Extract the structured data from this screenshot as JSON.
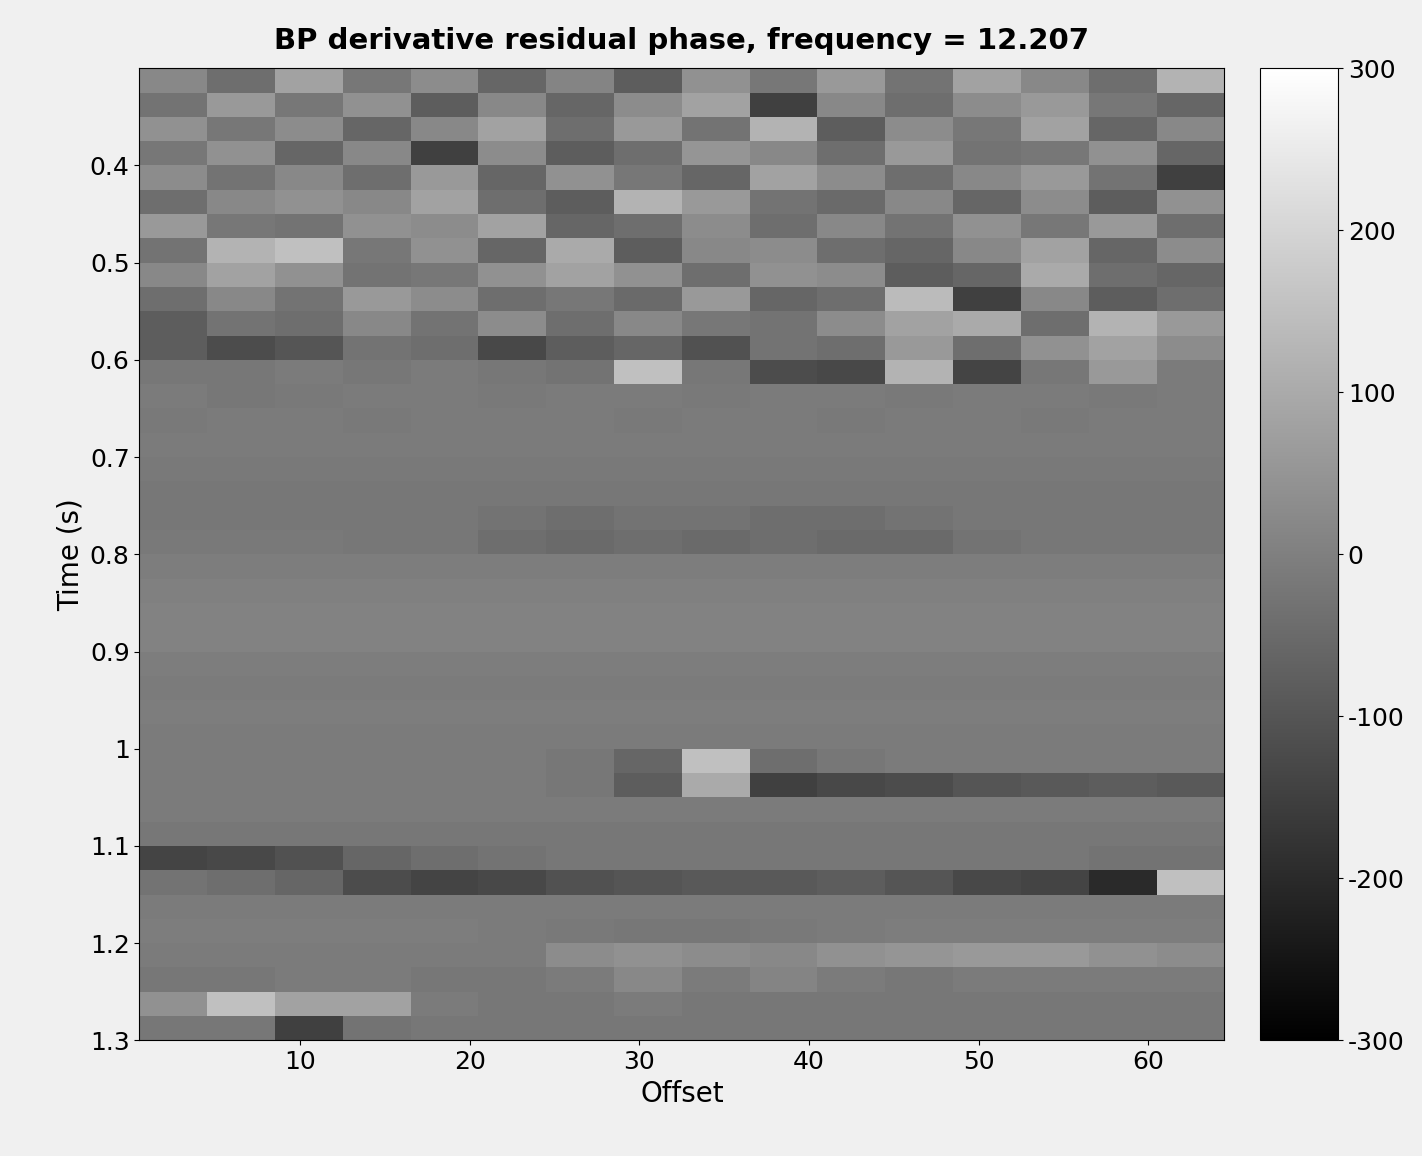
{
  "chart_data": {
    "type": "heatmap",
    "title": "BP derivative residual phase, frequency = 12.207",
    "x_label": "Offset",
    "y_label": "Time (s)",
    "color": "gray",
    "x": [
      2.5,
      6.5,
      10.5,
      14.5,
      18.5,
      22.5,
      26.5,
      30.5,
      34.5,
      38.5,
      42.5,
      46.5,
      50.5,
      54.5,
      58.5,
      62.5
    ],
    "y": [
      0.3125,
      0.3375,
      0.3625,
      0.3875,
      0.4125,
      0.4375,
      0.4625,
      0.4875,
      0.5125,
      0.5375,
      0.5625,
      0.5875,
      0.6125,
      0.6375,
      0.6625,
      0.6875,
      0.7125,
      0.7375,
      0.7625,
      0.7875,
      0.8125,
      0.8375,
      0.8625,
      0.8875,
      0.9125,
      0.9375,
      0.9625,
      0.9875,
      1.0125,
      1.0375,
      1.0625,
      1.0875,
      1.1125,
      1.1375,
      1.1625,
      1.1875,
      1.2125,
      1.2375,
      1.2625,
      1.2875
    ],
    "cells": [
      [
        20,
        -40,
        80,
        -20,
        30,
        -60,
        10,
        -80,
        40,
        -20,
        60,
        -30,
        80,
        20,
        -40,
        120
      ],
      [
        -30,
        60,
        -20,
        40,
        -80,
        20,
        -60,
        30,
        80,
        -150,
        20,
        -40,
        30,
        60,
        -20,
        -60
      ],
      [
        40,
        -20,
        30,
        -60,
        20,
        80,
        -40,
        60,
        -30,
        120,
        -80,
        30,
        -20,
        80,
        -60,
        20
      ],
      [
        -20,
        40,
        -60,
        20,
        -150,
        30,
        -80,
        -40,
        50,
        20,
        -40,
        60,
        -30,
        -20,
        40,
        -60
      ],
      [
        30,
        -30,
        20,
        -40,
        60,
        -60,
        40,
        -20,
        -60,
        80,
        30,
        -40,
        20,
        60,
        -30,
        -150
      ],
      [
        -40,
        20,
        40,
        20,
        80,
        -40,
        -80,
        120,
        60,
        -30,
        -50,
        20,
        -60,
        30,
        -80,
        40
      ],
      [
        60,
        -20,
        -30,
        40,
        30,
        80,
        -60,
        -40,
        30,
        -40,
        20,
        -30,
        40,
        -20,
        60,
        -40
      ],
      [
        -30,
        120,
        150,
        -20,
        40,
        -60,
        100,
        -80,
        20,
        30,
        -40,
        -60,
        20,
        80,
        -60,
        30
      ],
      [
        20,
        80,
        40,
        -30,
        -20,
        40,
        80,
        40,
        -40,
        40,
        30,
        -80,
        -60,
        100,
        -40,
        -60
      ],
      [
        -40,
        20,
        -30,
        60,
        30,
        -40,
        -20,
        -50,
        60,
        -60,
        -40,
        140,
        -150,
        20,
        -80,
        -40
      ],
      [
        -80,
        -30,
        -40,
        20,
        -30,
        30,
        -40,
        20,
        -20,
        -30,
        30,
        80,
        100,
        -40,
        120,
        60
      ],
      [
        -80,
        -120,
        -100,
        -30,
        -40,
        -130,
        -80,
        -60,
        -110,
        -30,
        -40,
        60,
        -40,
        40,
        80,
        30
      ],
      [
        -20,
        -20,
        -10,
        -20,
        -10,
        -20,
        -30,
        150,
        -20,
        -120,
        -130,
        120,
        -140,
        -20,
        60,
        -10
      ],
      [
        -10,
        -20,
        -15,
        -10,
        -10,
        -15,
        -10,
        -10,
        -15,
        -10,
        -10,
        -15,
        -10,
        -10,
        -15,
        -10
      ],
      [
        -15,
        -10,
        -10,
        -15,
        -10,
        -10,
        -10,
        -15,
        -10,
        -10,
        -15,
        -10,
        -10,
        -15,
        -10,
        -10
      ],
      [
        -10,
        -10,
        -10,
        -10,
        -10,
        -10,
        -10,
        -10,
        -10,
        -10,
        -10,
        -10,
        -10,
        -10,
        -10,
        -10
      ],
      [
        -15,
        -15,
        -15,
        -15,
        -15,
        -15,
        -15,
        -15,
        -15,
        -15,
        -15,
        -15,
        -15,
        -15,
        -15,
        -15
      ],
      [
        -20,
        -20,
        -20,
        -20,
        -20,
        -20,
        -20,
        -20,
        -20,
        -20,
        -20,
        -20,
        -20,
        -20,
        -20,
        -20
      ],
      [
        -20,
        -20,
        -20,
        -20,
        -20,
        -30,
        -40,
        -30,
        -30,
        -40,
        -40,
        -30,
        -20,
        -20,
        -20,
        -20
      ],
      [
        -15,
        -15,
        -15,
        -20,
        -20,
        -40,
        -50,
        -40,
        -50,
        -40,
        -50,
        -50,
        -30,
        -20,
        -20,
        -20
      ],
      [
        -5,
        -5,
        -5,
        -5,
        -5,
        -5,
        -5,
        -5,
        -5,
        -5,
        -5,
        -5,
        -5,
        -5,
        -5,
        -5
      ],
      [
        0,
        0,
        0,
        0,
        0,
        0,
        0,
        0,
        0,
        0,
        0,
        0,
        0,
        0,
        0,
        0
      ],
      [
        5,
        5,
        5,
        5,
        5,
        5,
        5,
        5,
        5,
        5,
        5,
        5,
        5,
        5,
        5,
        5
      ],
      [
        5,
        5,
        5,
        5,
        5,
        5,
        5,
        5,
        5,
        5,
        5,
        5,
        5,
        5,
        5,
        5
      ],
      [
        -5,
        -5,
        -5,
        -5,
        -5,
        -5,
        -5,
        -5,
        -5,
        -5,
        -5,
        -5,
        -5,
        -5,
        -5,
        -5
      ],
      [
        -10,
        -10,
        -10,
        -10,
        -10,
        -10,
        -10,
        -10,
        -10,
        -10,
        -10,
        -10,
        -10,
        -10,
        -10,
        -10
      ],
      [
        -5,
        -5,
        -5,
        -5,
        -5,
        -5,
        -5,
        -5,
        -5,
        -5,
        -5,
        -5,
        -5,
        -5,
        -5,
        -5
      ],
      [
        -10,
        -10,
        -10,
        -10,
        -10,
        -10,
        -10,
        -10,
        -10,
        -10,
        -10,
        -10,
        -10,
        -10,
        -10,
        -10
      ],
      [
        -10,
        -10,
        -10,
        -10,
        -10,
        -10,
        -20,
        -60,
        150,
        -40,
        -20,
        -10,
        -10,
        -10,
        -10,
        -10
      ],
      [
        -10,
        -10,
        -10,
        -10,
        -10,
        -10,
        -20,
        -80,
        100,
        -150,
        -130,
        -120,
        -100,
        -90,
        -80,
        -90
      ],
      [
        -10,
        -10,
        -10,
        -10,
        -10,
        -10,
        -10,
        -10,
        -10,
        -10,
        -10,
        -10,
        -10,
        -10,
        -10,
        -10
      ],
      [
        -20,
        -20,
        -20,
        -20,
        -20,
        -20,
        -20,
        -20,
        -20,
        -20,
        -20,
        -20,
        -20,
        -20,
        -20,
        -20
      ],
      [
        -140,
        -130,
        -110,
        -60,
        -40,
        -30,
        -20,
        -20,
        -20,
        -20,
        -20,
        -20,
        -20,
        -20,
        -30,
        -30
      ],
      [
        -30,
        -40,
        -60,
        -120,
        -140,
        -130,
        -110,
        -100,
        -90,
        -90,
        -80,
        -100,
        -130,
        -140,
        -200,
        150
      ],
      [
        -10,
        -10,
        -10,
        -10,
        -10,
        -10,
        -10,
        -10,
        -10,
        -10,
        -10,
        -10,
        -10,
        -10,
        -10,
        -10
      ],
      [
        -5,
        -5,
        -5,
        -5,
        -5,
        -10,
        -15,
        -20,
        -20,
        -15,
        -10,
        -5,
        -5,
        -5,
        -5,
        -5
      ],
      [
        -10,
        -10,
        -10,
        -10,
        -10,
        -10,
        30,
        40,
        30,
        20,
        40,
        50,
        60,
        60,
        40,
        30
      ],
      [
        -20,
        -20,
        -10,
        -10,
        -20,
        -20,
        -10,
        20,
        -10,
        10,
        -10,
        -20,
        -10,
        -10,
        -10,
        -10
      ],
      [
        40,
        150,
        80,
        80,
        -10,
        -20,
        -20,
        -10,
        -20,
        -20,
        -20,
        -20,
        -20,
        -20,
        -20,
        -20
      ],
      [
        -20,
        -20,
        -150,
        -30,
        -20,
        -20,
        -20,
        -20,
        -20,
        -20,
        -20,
        -20,
        -20,
        -20,
        -20,
        -20
      ]
    ],
    "xlim": [
      0.5,
      64.5
    ],
    "ylim": [
      1.3,
      0.3
    ],
    "xticks": [
      10,
      20,
      30,
      40,
      50,
      60
    ],
    "yticks": [
      0.4,
      0.5,
      0.6,
      0.7,
      0.8,
      0.9,
      1,
      1.1,
      1.2,
      1.3
    ],
    "color_range": [
      -300,
      300
    ],
    "color_ticks": [
      -300,
      -200,
      -100,
      0,
      100,
      200,
      300
    ]
  }
}
